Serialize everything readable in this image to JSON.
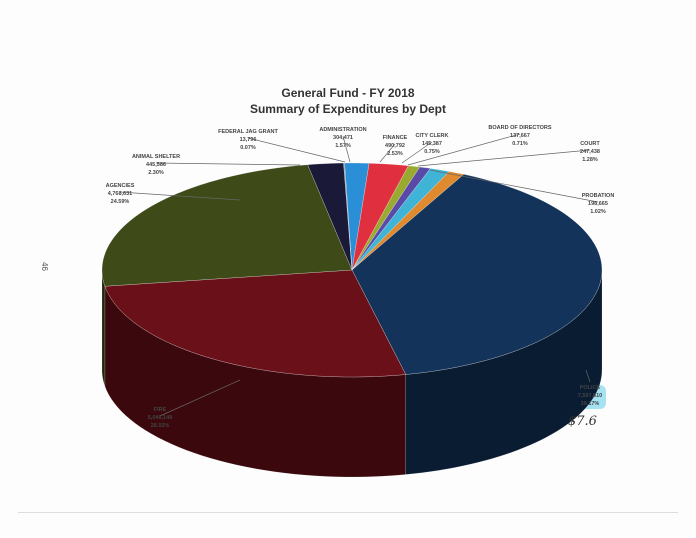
{
  "page": {
    "page_number": "46",
    "handwritten_note": "$7.6"
  },
  "chart_data": {
    "type": "pie",
    "style": "3d",
    "title": "General Fund - FY 2018",
    "subtitle": "Summary of Expenditures by Dept",
    "slices": [
      {
        "label": "ADMINISTRATION",
        "value": "304,471",
        "percent": "1.57%",
        "pct": 1.57,
        "color": "#2a8fd6"
      },
      {
        "label": "FINANCE",
        "value": "490,792",
        "percent": "2.53%",
        "pct": 2.53,
        "color": "#e03040"
      },
      {
        "label": "CITY CLERK",
        "value": "145,387",
        "percent": "0.75%",
        "pct": 0.75,
        "color": "#9aaa30"
      },
      {
        "label": "BOARD OF DIRECTORS",
        "value": "137,667",
        "percent": "0.71%",
        "pct": 0.71,
        "color": "#5a4aa8"
      },
      {
        "label": "COURT",
        "value": "247,438",
        "percent": "1.28%",
        "pct": 1.28,
        "color": "#40b4d6"
      },
      {
        "label": "PROBATION",
        "value": "198,665",
        "percent": "1.02%",
        "pct": 1.02,
        "color": "#e08a30"
      },
      {
        "label": "POLICE",
        "value": "7,597,810",
        "percent": "39.17%",
        "pct": 39.17,
        "color": "#13335a"
      },
      {
        "label": "FIRE",
        "value": "5,046,149",
        "percent": "26.02%",
        "pct": 26.02,
        "color": "#6a1018"
      },
      {
        "label": "AGENCIES",
        "value": "4,768,631",
        "percent": "24.59%",
        "pct": 24.59,
        "color": "#3e4a18"
      },
      {
        "label": "ANIMAL SHELTER",
        "value": "445,586",
        "percent": "2.30%",
        "pct": 2.3,
        "color": "#1a1a38"
      },
      {
        "label": "FEDERAL JAG GRANT",
        "value": "13,796",
        "percent": "0.07%",
        "pct": 0.07,
        "color": "#8899aa"
      }
    ]
  }
}
